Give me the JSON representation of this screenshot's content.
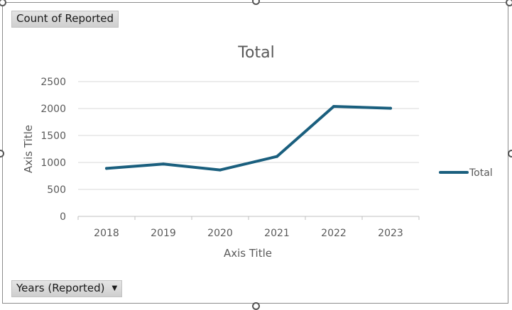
{
  "filters": {
    "value_field": "Count of Reported",
    "axis_field": "Years (Reported)"
  },
  "colors": {
    "series": "#1a5f7e",
    "grid": "#d9d9d9",
    "text": "#595959"
  },
  "chart_data": {
    "type": "line",
    "title": "Total",
    "xlabel": "Axis Title",
    "ylabel": "Axis Title",
    "categories": [
      "2018",
      "2019",
      "2020",
      "2021",
      "2022",
      "2023"
    ],
    "yticks": [
      "0",
      "500",
      "1000",
      "1500",
      "2000",
      "2500"
    ],
    "ylim": [
      0,
      2500
    ],
    "grid": true,
    "legend_position": "right",
    "series": [
      {
        "name": "Total",
        "values": [
          890,
          970,
          860,
          1110,
          2040,
          2005
        ]
      }
    ]
  }
}
